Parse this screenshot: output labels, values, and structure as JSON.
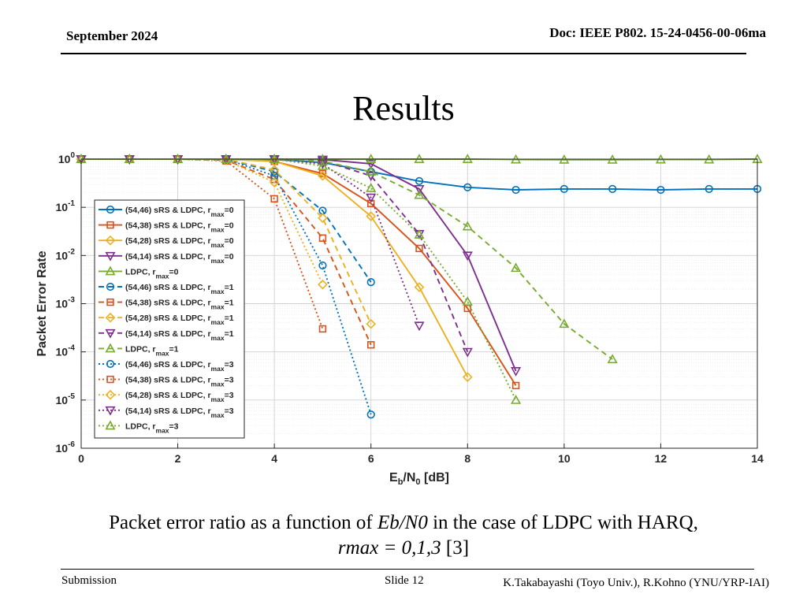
{
  "header": {
    "date": "September 2024",
    "doc": "Doc: IEEE P802. 15-24-0456-00-06ma"
  },
  "slide_title": "Results",
  "caption": {
    "prefix": "Packet error ratio as a function of ",
    "math1": "Eb/N0",
    "suffix": " in the case of LDPC with HARQ,",
    "line2_math": "rmax = 0,1,3",
    "line2_ref": " [3]"
  },
  "footer": {
    "left": "Submission",
    "middle": "Slide 12",
    "right": "K.Takabayashi (Toyo Univ.), R.Kohno (YNU/YRP-IAI)"
  },
  "chart_data": {
    "type": "line",
    "xlabel": "Eb/N0 [dB]",
    "ylabel": "Packet Error Rate",
    "xlim": [
      0,
      14
    ],
    "ylim": [
      1e-06,
      1
    ],
    "yscale": "log",
    "xticks": [
      0,
      2,
      4,
      6,
      8,
      10,
      12,
      14
    ],
    "yticks": [
      "10^0",
      "10^-1",
      "10^-2",
      "10^-3",
      "10^-4",
      "10^-5",
      "10^-6"
    ],
    "grid": true,
    "legend_position": "left",
    "colors": {
      "(54,46)": "#0072BD",
      "(54,38)": "#D95319",
      "(54,28)": "#EDB120",
      "(54,14)": "#7E2F8E",
      "LDPC": "#77AC30"
    },
    "series": [
      {
        "name": "(54,46) sRS & LDPC, r_max=0",
        "code": "(54,46)",
        "rmax": 0,
        "marker": "circle",
        "x": [
          0,
          1,
          2,
          3,
          4,
          5,
          6,
          7,
          8,
          9,
          10,
          11,
          12,
          13,
          14
        ],
        "y": [
          1,
          1,
          1,
          1,
          0.98,
          0.85,
          0.55,
          0.35,
          0.26,
          0.23,
          0.24,
          0.24,
          0.23,
          0.24,
          0.24
        ]
      },
      {
        "name": "(54,38) sRS & LDPC, r_max=0",
        "code": "(54,38)",
        "rmax": 0,
        "marker": "square",
        "x": [
          0,
          1,
          2,
          3,
          4,
          5,
          6,
          7,
          8,
          9
        ],
        "y": [
          1,
          1,
          1,
          1,
          0.9,
          0.5,
          0.12,
          0.014,
          0.0008,
          2e-05
        ]
      },
      {
        "name": "(54,28) sRS & LDPC, r_max=0",
        "code": "(54,28)",
        "rmax": 0,
        "marker": "diamond",
        "x": [
          0,
          1,
          2,
          3,
          4,
          5,
          6,
          7,
          8
        ],
        "y": [
          1,
          1,
          1,
          1,
          0.9,
          0.45,
          0.065,
          0.0022,
          3e-05
        ]
      },
      {
        "name": "(54,14) sRS & LDPC, r_max=0",
        "code": "(54,14)",
        "rmax": 0,
        "marker": "triangle-down",
        "x": [
          0,
          1,
          2,
          3,
          4,
          5,
          6,
          7,
          8,
          9
        ],
        "y": [
          1,
          1,
          1,
          1,
          1,
          0.98,
          0.8,
          0.24,
          0.01,
          4e-05
        ]
      },
      {
        "name": "LDPC, r_max=0",
        "code": "LDPC",
        "rmax": 0,
        "marker": "triangle-up",
        "x": [
          0,
          1,
          2,
          3,
          4,
          5,
          6,
          7,
          8,
          9,
          10,
          11,
          12,
          13,
          14
        ],
        "y": [
          1,
          1,
          1,
          1,
          1,
          1,
          1,
          1,
          1,
          0.98,
          0.97,
          0.97,
          0.98,
          0.98,
          1
        ]
      },
      {
        "name": "(54,46) sRS & LDPC, r_max=1",
        "code": "(54,46)",
        "rmax": 1,
        "marker": "circle",
        "x": [
          0,
          1,
          2,
          3,
          4,
          5,
          6
        ],
        "y": [
          1,
          1,
          1,
          1,
          0.55,
          0.085,
          0.0028
        ]
      },
      {
        "name": "(54,38) sRS & LDPC, r_max=1",
        "code": "(54,38)",
        "rmax": 1,
        "marker": "square",
        "x": [
          0,
          1,
          2,
          3,
          4,
          5,
          6
        ],
        "y": [
          1,
          1,
          1,
          0.95,
          0.38,
          0.023,
          0.00014
        ]
      },
      {
        "name": "(54,28) sRS & LDPC, r_max=1",
        "code": "(54,28)",
        "rmax": 1,
        "marker": "diamond",
        "x": [
          0,
          1,
          2,
          3,
          4,
          5,
          6
        ],
        "y": [
          1,
          1,
          1,
          1,
          0.6,
          0.06,
          0.00038
        ]
      },
      {
        "name": "(54,14) sRS & LDPC, r_max=1",
        "code": "(54,14)",
        "rmax": 1,
        "marker": "triangle-down",
        "x": [
          0,
          1,
          2,
          3,
          4,
          5,
          6,
          7,
          8
        ],
        "y": [
          1,
          1,
          1,
          1,
          1,
          0.92,
          0.45,
          0.028,
          0.0001
        ]
      },
      {
        "name": "LDPC, r_max=1",
        "code": "LDPC",
        "rmax": 1,
        "marker": "triangle-up",
        "x": [
          0,
          1,
          2,
          3,
          4,
          5,
          6,
          7,
          8,
          9,
          10,
          11
        ],
        "y": [
          1,
          1,
          1,
          1,
          1,
          0.9,
          0.55,
          0.18,
          0.04,
          0.0055,
          0.00038,
          7e-05
        ]
      },
      {
        "name": "(54,46) sRS & LDPC, r_max=3",
        "code": "(54,46)",
        "rmax": 3,
        "marker": "circle",
        "x": [
          0,
          1,
          2,
          3,
          4,
          5,
          6
        ],
        "y": [
          1,
          1,
          1,
          1,
          0.45,
          0.0062,
          5e-06
        ]
      },
      {
        "name": "(54,38) sRS & LDPC, r_max=3",
        "code": "(54,38)",
        "rmax": 3,
        "marker": "square",
        "x": [
          0,
          1,
          2,
          3,
          4,
          5
        ],
        "y": [
          1,
          1,
          1,
          0.92,
          0.15,
          0.0003
        ]
      },
      {
        "name": "(54,28) sRS & LDPC, r_max=3",
        "code": "(54,28)",
        "rmax": 3,
        "marker": "diamond",
        "x": [
          0,
          1,
          2,
          3,
          4,
          5
        ],
        "y": [
          1,
          1,
          1,
          0.95,
          0.33,
          0.0025
        ]
      },
      {
        "name": "(54,14) sRS & LDPC, r_max=3",
        "code": "(54,14)",
        "rmax": 3,
        "marker": "triangle-down",
        "x": [
          0,
          1,
          2,
          3,
          4,
          5,
          6,
          7
        ],
        "y": [
          1,
          1,
          1,
          1,
          1,
          0.8,
          0.16,
          0.00035
        ]
      },
      {
        "name": "LDPC, r_max=3",
        "code": "LDPC",
        "rmax": 3,
        "marker": "triangle-up",
        "x": [
          0,
          1,
          2,
          3,
          4,
          5,
          6,
          7,
          8,
          9
        ],
        "y": [
          1,
          1,
          1,
          1,
          1,
          0.72,
          0.25,
          0.027,
          0.0011,
          1e-05
        ]
      }
    ]
  }
}
